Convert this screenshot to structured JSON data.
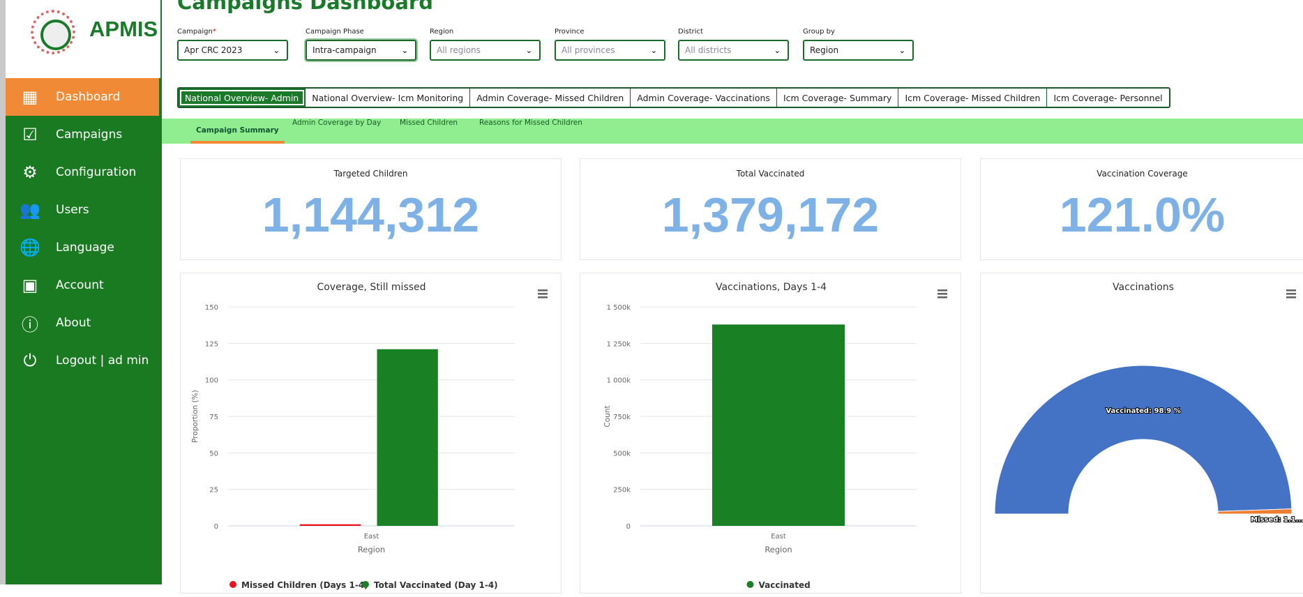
{
  "brand": {
    "name": "APMIS"
  },
  "sidebar": {
    "items": [
      {
        "label": "Dashboard",
        "icon": "grid-icon",
        "active": true
      },
      {
        "label": "Campaigns",
        "icon": "clipboard-check-icon"
      },
      {
        "label": "Configuration",
        "icon": "gear-icon"
      },
      {
        "label": "Users",
        "icon": "users-icon"
      },
      {
        "label": "Language",
        "icon": "globe-icon"
      },
      {
        "label": "Account",
        "icon": "id-badge-icon"
      },
      {
        "label": "About",
        "icon": "info-icon"
      },
      {
        "label": "Logout | ad min",
        "icon": "power-icon"
      }
    ]
  },
  "page": {
    "title": "Campaigns Dashboard"
  },
  "filters": [
    {
      "label": "Campaign",
      "required": "*",
      "value": "Apr CRC 2023"
    },
    {
      "label": "Campaign Phase",
      "value": "Intra-campaign"
    },
    {
      "label": "Region",
      "placeholder": "All regions"
    },
    {
      "label": "Province",
      "placeholder": "All provinces"
    },
    {
      "label": "District",
      "placeholder": "All districts"
    },
    {
      "label": "Group by",
      "value": "Region"
    }
  ],
  "tabs": [
    "National Overview- Admin",
    "National Overview- Icm Monitoring",
    "Admin Coverage- Missed Children",
    "Admin Coverage- Vaccinations",
    "Icm Coverage- Summary",
    "Icm Coverage- Missed Children",
    "Icm Coverage- Personnel"
  ],
  "subtabs": [
    "Campaign Summary",
    "Admin Coverage by Day",
    "Missed Children",
    "Reasons for Missed Children"
  ],
  "kpis": [
    {
      "title": "Targeted Children",
      "value": "1,144,312"
    },
    {
      "title": "Total Vaccinated",
      "value": "1,379,172"
    },
    {
      "title": "Vaccination Coverage",
      "value": "121.0%"
    }
  ],
  "colors": {
    "brand_green": "#1a7a22",
    "accent_orange": "#f08a36",
    "subnav_green": "#90ee90",
    "kpi_blue": "#7eb2e6"
  },
  "chart_data": [
    {
      "type": "bar",
      "title": "Coverage, Still missed",
      "xlabel": "Region",
      "ylabel": "Proportion (%)",
      "categories": [
        "East"
      ],
      "ylim": [
        0,
        150
      ],
      "yticks": [
        "0",
        "25",
        "50",
        "75",
        "100",
        "125",
        "150"
      ],
      "grid": true,
      "legend": "bottom",
      "series": [
        {
          "name": "Missed Children (Days 1-4)",
          "values": [
            1.1
          ],
          "color": "#e8141c"
        },
        {
          "name": "Total Vaccinated (Day 1-4)",
          "values": [
            121
          ],
          "color": "#1a8024"
        }
      ]
    },
    {
      "type": "bar",
      "title": "Vaccinations, Days 1-4",
      "xlabel": "Region",
      "ylabel": "Count",
      "categories": [
        "East"
      ],
      "ylim": [
        0,
        1500000
      ],
      "yticks": [
        "0",
        "250k",
        "500k",
        "750k",
        "1 000k",
        "1 250k",
        "1 500k"
      ],
      "grid": true,
      "legend": "bottom",
      "series": [
        {
          "name": "Vaccinated",
          "values": [
            1379172
          ],
          "color": "#1a8024"
        }
      ]
    },
    {
      "type": "pie",
      "title": "Vaccinations",
      "variant": "semi-donut",
      "slices": [
        {
          "name": "Vaccinated",
          "value": 98.9,
          "label": "Vaccinated: 98.9 %",
          "color": "#4472c4"
        },
        {
          "name": "Missed",
          "value": 1.1,
          "label": "Missed: 1.1...",
          "color": "#ed7d31"
        }
      ]
    }
  ]
}
